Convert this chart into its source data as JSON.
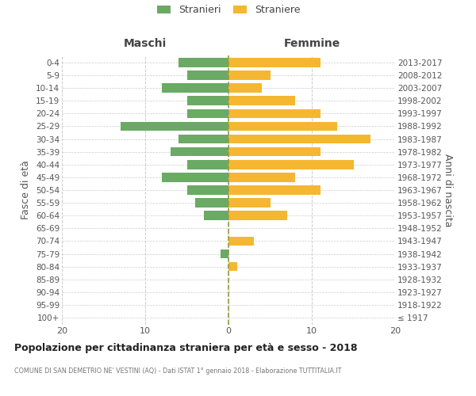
{
  "age_groups": [
    "100+",
    "95-99",
    "90-94",
    "85-89",
    "80-84",
    "75-79",
    "70-74",
    "65-69",
    "60-64",
    "55-59",
    "50-54",
    "45-49",
    "40-44",
    "35-39",
    "30-34",
    "25-29",
    "20-24",
    "15-19",
    "10-14",
    "5-9",
    "0-4"
  ],
  "birth_years": [
    "≤ 1917",
    "1918-1922",
    "1923-1927",
    "1928-1932",
    "1933-1937",
    "1938-1942",
    "1943-1947",
    "1948-1952",
    "1953-1957",
    "1958-1962",
    "1963-1967",
    "1968-1972",
    "1973-1977",
    "1978-1982",
    "1983-1987",
    "1988-1992",
    "1993-1997",
    "1998-2002",
    "2003-2007",
    "2008-2012",
    "2013-2017"
  ],
  "males": [
    0,
    0,
    0,
    0,
    0,
    1,
    0,
    0,
    3,
    4,
    5,
    8,
    5,
    7,
    6,
    13,
    5,
    5,
    8,
    5,
    6
  ],
  "females": [
    0,
    0,
    0,
    0,
    1,
    0,
    3,
    0,
    7,
    5,
    11,
    8,
    15,
    11,
    17,
    13,
    11,
    8,
    4,
    5,
    11
  ],
  "male_color": "#6aaa64",
  "female_color": "#f5b731",
  "male_label": "Stranieri",
  "female_label": "Straniere",
  "title": "Popolazione per cittadinanza straniera per età e sesso - 2018",
  "subtitle": "COMUNE DI SAN DEMETRIO NE' VESTINI (AQ) - Dati ISTAT 1° gennaio 2018 - Elaborazione TUTTITALIA.IT",
  "ylabel_left": "Fasce di età",
  "ylabel_right": "Anni di nascita",
  "header_left": "Maschi",
  "header_right": "Femmine",
  "xlim": 20,
  "xtick_vals": [
    -20,
    -10,
    0,
    10,
    20
  ],
  "xtick_labels": [
    "20",
    "10",
    "0",
    "10",
    "20"
  ],
  "background_color": "#ffffff",
  "grid_color": "#cccccc",
  "bar_height": 0.72
}
